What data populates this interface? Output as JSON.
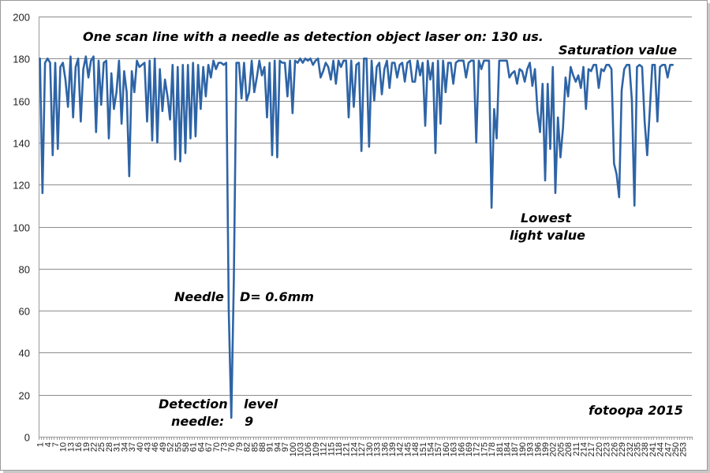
{
  "chart_data": {
    "type": "line",
    "title": "One scan line with a needle as detection object laser on: 130 us.",
    "xlabel": "",
    "ylabel": "",
    "ylim": [
      0,
      200
    ],
    "yticks": [
      0,
      20,
      40,
      60,
      80,
      100,
      120,
      140,
      160,
      180,
      200
    ],
    "xlim": [
      1,
      256
    ],
    "xticks": [
      1,
      4,
      7,
      10,
      13,
      16,
      19,
      22,
      25,
      28,
      31,
      34,
      37,
      40,
      43,
      46,
      49,
      52,
      55,
      58,
      61,
      64,
      67,
      70,
      73,
      76,
      79,
      82,
      85,
      88,
      91,
      94,
      97,
      100,
      103,
      106,
      109,
      112,
      115,
      118,
      121,
      124,
      127,
      130,
      133,
      136,
      139,
      142,
      145,
      148,
      151,
      154,
      157,
      160,
      163,
      166,
      169,
      172,
      175,
      178,
      181,
      184,
      187,
      190,
      193,
      196,
      199,
      202,
      205,
      208,
      211,
      214,
      217,
      220,
      223,
      226,
      229,
      232,
      235,
      238,
      241,
      244,
      247,
      250,
      253
    ],
    "grid": "horizontal",
    "series": [
      {
        "name": "scan line",
        "color": "#2e64a6",
        "y": [
          180,
          116,
          178,
          180,
          178,
          134,
          178,
          137,
          176,
          178,
          170,
          157,
          181,
          152,
          176,
          180,
          150,
          175,
          181,
          171,
          179,
          181,
          145,
          179,
          158,
          178,
          179,
          142,
          173,
          156,
          164,
          179,
          149,
          174,
          164,
          124,
          174,
          164,
          179,
          176,
          177,
          178,
          150,
          179,
          141,
          180,
          140,
          175,
          155,
          170,
          162,
          151,
          177,
          132,
          176,
          131,
          177,
          135,
          177,
          142,
          178,
          143,
          177,
          156,
          176,
          162,
          177,
          171,
          179,
          175,
          178,
          178,
          177,
          178,
          60,
          9,
          75,
          178,
          178,
          161,
          178,
          160,
          164,
          179,
          164,
          171,
          179,
          172,
          176,
          152,
          178,
          134,
          179,
          133,
          179,
          178,
          178,
          162,
          179,
          154,
          179,
          178,
          180,
          178,
          180,
          179,
          180,
          177,
          179,
          180,
          171,
          174,
          178,
          176,
          170,
          179,
          168,
          179,
          176,
          179,
          179,
          152,
          179,
          157,
          177,
          178,
          136,
          180,
          180,
          138,
          179,
          160,
          176,
          178,
          163,
          175,
          179,
          166,
          178,
          178,
          171,
          177,
          178,
          169,
          178,
          179,
          169,
          169,
          179,
          172,
          178,
          148,
          179,
          170,
          178,
          135,
          179,
          149,
          179,
          164,
          178,
          178,
          168,
          178,
          179,
          179,
          179,
          171,
          178,
          179,
          179,
          140,
          179,
          175,
          179,
          179,
          179,
          109,
          156,
          142,
          179,
          179,
          179,
          179,
          171,
          173,
          174,
          168,
          175,
          174,
          169,
          175,
          178,
          167,
          175,
          155,
          145,
          168,
          122,
          168,
          137,
          176,
          116,
          152,
          133,
          147,
          171,
          162,
          176,
          172,
          169,
          172,
          166,
          176,
          156,
          175,
          174,
          177,
          177,
          166,
          175,
          174,
          177,
          177,
          175,
          130,
          125,
          114,
          165,
          175,
          177,
          177,
          160,
          110,
          176,
          177,
          176,
          150,
          134,
          155,
          177,
          177,
          150,
          176,
          177,
          177,
          171,
          177,
          177
        ]
      }
    ],
    "annotations": {
      "saturation": "Saturation value",
      "lowest_line1": "Lowest",
      "lowest_line2": "light value",
      "needle": "Needle",
      "diameter": "D= 0.6mm",
      "detection_line1": "Detection",
      "detection_line2": "needle:",
      "level_line1": "level",
      "level_line2": "9",
      "credit": "fotoopa 2015"
    }
  }
}
